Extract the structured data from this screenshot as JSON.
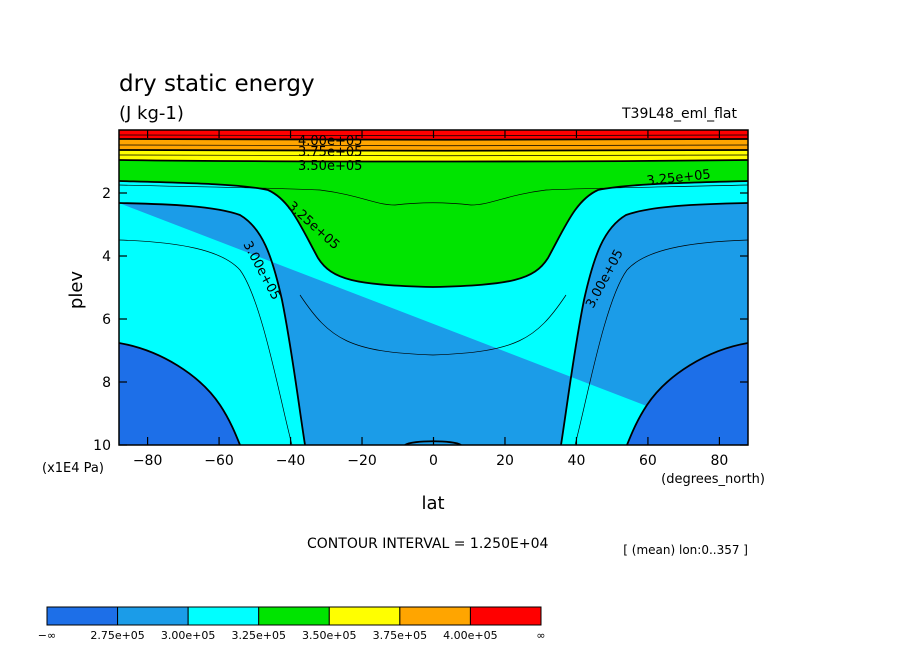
{
  "title": "dry static energy",
  "units": "(J kg-1)",
  "dataset": "T39L48_eml_flat",
  "ylabel": "plev",
  "yunits": "(x1E4 Pa)",
  "xlabel": "lat",
  "xunits": "(degrees_north)",
  "contour_interval": "CONTOUR INTERVAL = 1.250E+04",
  "mean_note": "[ (mean) lon:0..357 ]",
  "colorbar": {
    "labels": [
      "−∞",
      "2.75e+05",
      "3.00e+05",
      "3.25e+05",
      "3.50e+05",
      "3.75e+05",
      "4.00e+05",
      "∞"
    ],
    "colors": [
      "#1d6fe8",
      "#1b9ce8",
      "#00ffff",
      "#00e400",
      "#ffff00",
      "#ffa500",
      "#ff0000"
    ]
  },
  "chart_data": {
    "type": "heatmap",
    "title": "dry static energy",
    "subtitle": "(J kg-1)",
    "xlabel": "lat",
    "ylabel": "plev",
    "xlim": [
      -88,
      88
    ],
    "ylim": [
      10,
      0
    ],
    "xticks": [
      -80,
      -60,
      -40,
      -20,
      0,
      20,
      40,
      60,
      80
    ],
    "yticks": [
      2,
      4,
      6,
      8,
      10
    ],
    "levels": [
      275000,
      287500,
      300000,
      312500,
      325000,
      337500,
      350000,
      362500,
      375000,
      387500,
      400000
    ],
    "labeled_contours": [
      {
        "label": "4.00e+05",
        "lat": -20,
        "plev": 0.35
      },
      {
        "label": "3.75e+05",
        "lat": -20,
        "plev": 0.75
      },
      {
        "label": "3.50e+05",
        "lat": -20,
        "plev": 1.1
      },
      {
        "label": "3.25e+05",
        "lat": -27,
        "plev": 3.0
      },
      {
        "label": "3.25e+05",
        "lat": 72,
        "plev": 1.7
      },
      {
        "label": "3.00e+05",
        "lat": -53,
        "plev": 4.9
      },
      {
        "label": "3.00e+05",
        "lat": 49,
        "plev": 4.9
      }
    ],
    "contour_paths": [
      {
        "level": 300000,
        "points": [
          [
            -88,
            2.35
          ],
          [
            -70,
            2.45
          ],
          [
            -55,
            2.9
          ],
          [
            -44,
            4.0
          ],
          [
            -38,
            6.2
          ],
          [
            -33,
            8.3
          ],
          [
            -30,
            9.6
          ],
          [
            -28,
            10
          ],
          [
            28,
            10
          ],
          [
            30,
            9.6
          ],
          [
            33,
            8.3
          ],
          [
            38,
            6.2
          ],
          [
            44,
            4.0
          ],
          [
            55,
            2.9
          ],
          [
            70,
            2.45
          ],
          [
            88,
            2.35
          ]
        ]
      },
      {
        "level": 325000,
        "points": [
          [
            -88,
            1.6
          ],
          [
            -70,
            1.7
          ],
          [
            -50,
            1.85
          ],
          [
            -42,
            2.2
          ],
          [
            -35,
            3.0
          ],
          [
            -28,
            4.3
          ],
          [
            -22,
            4.8
          ],
          [
            -10,
            5.0
          ],
          [
            0,
            5.0
          ],
          [
            10,
            5.0
          ],
          [
            22,
            4.8
          ],
          [
            28,
            4.3
          ],
          [
            35,
            3.0
          ],
          [
            42,
            2.2
          ],
          [
            50,
            1.85
          ],
          [
            70,
            1.7
          ],
          [
            88,
            1.6
          ]
        ]
      },
      {
        "level": 350000,
        "points": [
          [
            -88,
            0.95
          ],
          [
            -60,
            0.95
          ],
          [
            -40,
            1.05
          ],
          [
            -20,
            1.1
          ],
          [
            0,
            1.1
          ],
          [
            20,
            1.1
          ],
          [
            40,
            1.05
          ],
          [
            60,
            0.95
          ],
          [
            88,
            0.95
          ]
        ]
      },
      {
        "level": 375000,
        "points": [
          [
            -88,
            0.6
          ],
          [
            -40,
            0.65
          ],
          [
            0,
            0.7
          ],
          [
            40,
            0.65
          ],
          [
            88,
            0.6
          ]
        ]
      },
      {
        "level": 400000,
        "points": [
          [
            -88,
            0.1
          ],
          [
            -40,
            0.12
          ],
          [
            0,
            0.12
          ],
          [
            40,
            0.12
          ],
          [
            88,
            0.1
          ]
        ]
      }
    ]
  }
}
